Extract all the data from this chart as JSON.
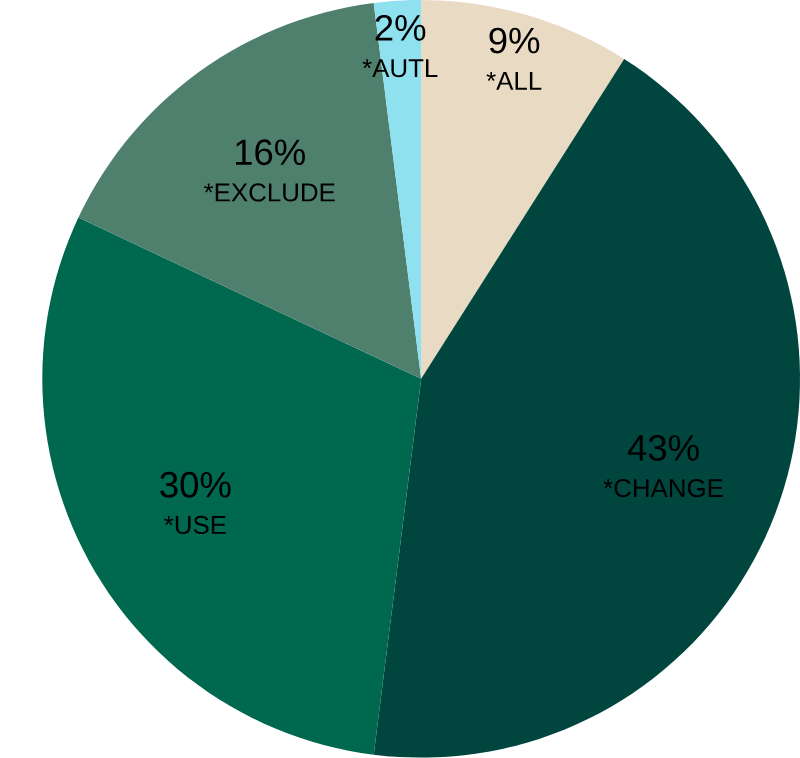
{
  "chart_data": {
    "type": "pie",
    "categories": [
      "*ALL",
      "*CHANGE",
      "*USE",
      "*EXCLUDE",
      "*AUTL"
    ],
    "values": [
      9,
      43,
      30,
      16,
      2
    ],
    "value_labels": [
      "9%",
      "43%",
      "30%",
      "16%",
      "2%"
    ],
    "colors": [
      "#e9dbc3",
      "#00463f",
      "#00684f",
      "#4f806e",
      "#8fe1ef"
    ]
  }
}
